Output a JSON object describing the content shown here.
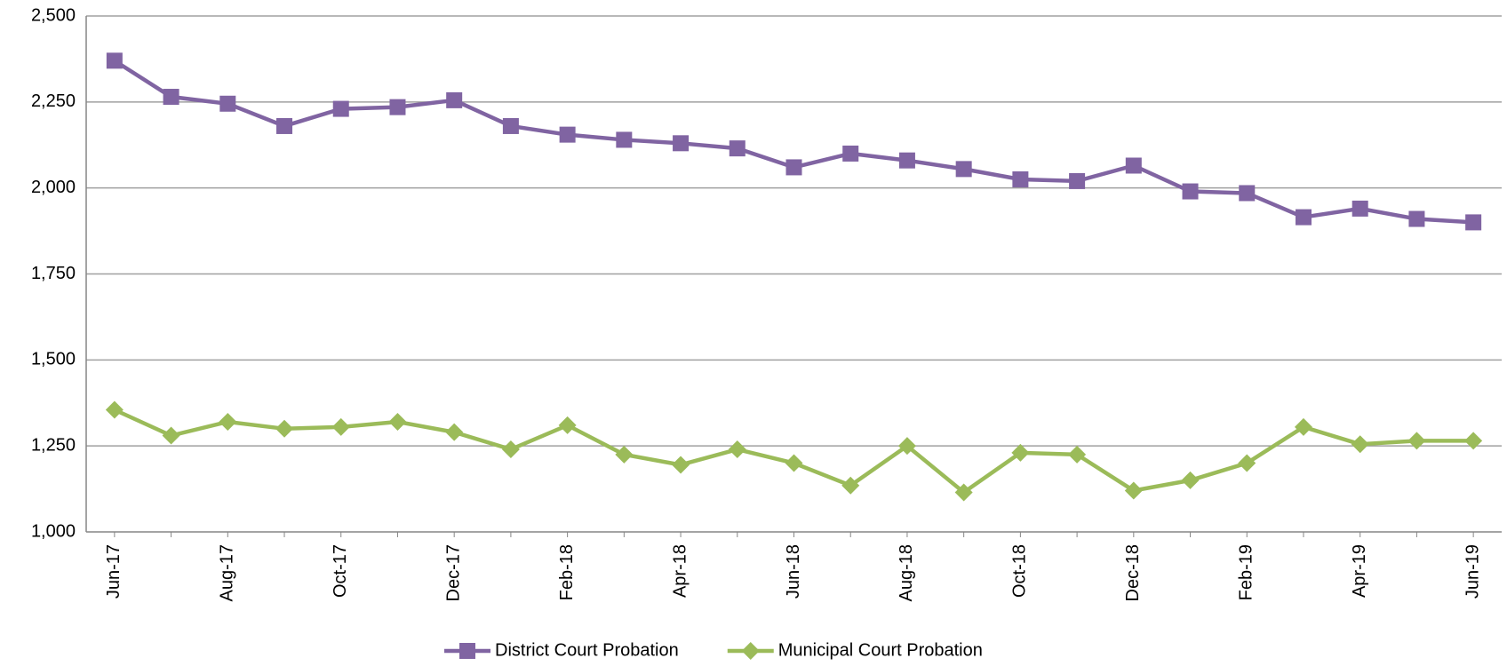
{
  "chart_data": {
    "type": "line",
    "categories": [
      "Jun-17",
      null,
      "Aug-17",
      null,
      "Oct-17",
      null,
      "Dec-17",
      null,
      "Feb-18",
      null,
      "Apr-18",
      null,
      "Jun-18",
      null,
      "Aug-18",
      null,
      "Oct-18",
      null,
      "Dec-18",
      null,
      "Feb-19",
      null,
      "Apr-19",
      null,
      "Jun-19"
    ],
    "series": [
      {
        "name": "District Court Probation",
        "color": "#8064a2",
        "marker": "square",
        "values": [
          2370,
          2265,
          2245,
          2180,
          2230,
          2235,
          2255,
          2180,
          2155,
          2140,
          2130,
          2115,
          2060,
          2100,
          2080,
          2055,
          2025,
          2020,
          2065,
          1990,
          1985,
          1915,
          1940,
          1910,
          1900
        ]
      },
      {
        "name": "Municipal Court Probation",
        "color": "#9bbb59",
        "marker": "diamond",
        "values": [
          1355,
          1280,
          1320,
          1300,
          1305,
          1320,
          1290,
          1240,
          1310,
          1225,
          1195,
          1240,
          1200,
          1135,
          1250,
          1115,
          1230,
          1225,
          1120,
          1150,
          1200,
          1305,
          1255,
          1265,
          1265
        ]
      }
    ],
    "ylim": [
      1000,
      2500
    ],
    "yticks": [
      {
        "value": 1000,
        "label": "1,000"
      },
      {
        "value": 1250,
        "label": "1,250"
      },
      {
        "value": 1500,
        "label": "1,500"
      },
      {
        "value": 1750,
        "label": "1,750"
      },
      {
        "value": 2000,
        "label": "2,000"
      },
      {
        "value": 2250,
        "label": "2,250"
      },
      {
        "value": 2500,
        "label": "2,500"
      }
    ],
    "grid": true,
    "legend": "bottom"
  }
}
